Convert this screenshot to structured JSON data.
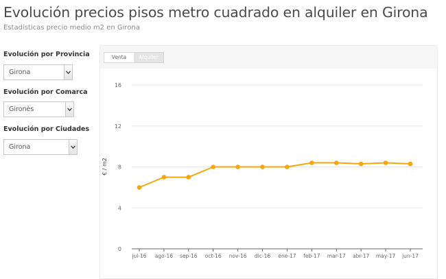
{
  "header": {
    "title": "Evolución precios pisos metro cuadrado en alquiler en Girona",
    "subtitle": "Estadísticas precio medio m2 en Girona"
  },
  "filters": [
    {
      "label": "Evolución por Provincia",
      "value": "Girona"
    },
    {
      "label": "Evolución por Comarca",
      "value": "Gironès"
    },
    {
      "label": "Evolución por Ciudades",
      "value": "Girona"
    }
  ],
  "toggle": {
    "options": [
      "Venta",
      "Alquiler"
    ],
    "selected": "Alquiler"
  },
  "colors": {
    "line": "#f5a70a",
    "grid": "#e6e6e6",
    "axis": "#666666"
  },
  "chart_data": {
    "type": "line",
    "title": "",
    "xlabel": "",
    "ylabel": "€ / m2",
    "ylim": [
      0,
      16
    ],
    "yticks": [
      0,
      4,
      8,
      12,
      16
    ],
    "grid": true,
    "categories": [
      "jul-16",
      "ago-16",
      "sep-16",
      "oct-16",
      "nov-16",
      "dic-16",
      "ene-17",
      "feb-17",
      "mar-17",
      "abr-17",
      "may-17",
      "jun-17"
    ],
    "series": [
      {
        "values": [
          6.0,
          7.0,
          7.0,
          8.0,
          8.0,
          8.0,
          8.0,
          8.4,
          8.4,
          8.3,
          8.4,
          8.3
        ]
      }
    ]
  }
}
